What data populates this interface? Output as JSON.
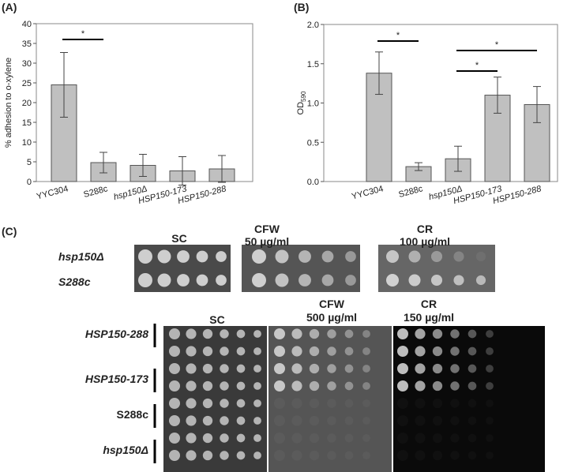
{
  "chart_data": [
    {
      "type": "bar",
      "panel_label": "(A)",
      "y_label": "% adhesion to o-xylene",
      "categories": [
        "YYC304",
        "S288c",
        "hsp150Δ",
        "HSP150-173",
        "HSP150-288"
      ],
      "values": [
        24.5,
        4.8,
        4.1,
        2.7,
        3.2
      ],
      "errors": [
        8.2,
        2.6,
        2.8,
        3.6,
        3.4
      ],
      "color": "#c0c0c0",
      "ylim": [
        0,
        40
      ],
      "yticks": [
        0,
        5,
        10,
        15,
        20,
        25,
        30,
        35,
        40
      ],
      "significance": [
        {
          "label": "*",
          "pair": [
            "YYC304",
            "S288c"
          ]
        }
      ]
    },
    {
      "type": "bar",
      "panel_label": "(B)",
      "y_label": {
        "main": "OD",
        "sub": "590"
      },
      "categories": [
        "YYC304",
        "S288c",
        "hsp150Δ",
        "HSP150-173",
        "HSP150-288"
      ],
      "values": [
        1.38,
        0.19,
        0.29,
        1.1,
        0.98
      ],
      "errors": [
        0.27,
        0.05,
        0.16,
        0.23,
        0.23
      ],
      "color": "#c0c0c0",
      "ylim": [
        0,
        2
      ],
      "yticks": [
        {
          "value": 0,
          "label": "0.0"
        },
        {
          "value": 0.5,
          "label": "0.5"
        },
        {
          "value": 1,
          "label": "1.0"
        },
        {
          "value": 1.5,
          "label": "1.5"
        },
        {
          "value": 2,
          "label": "2.0"
        }
      ],
      "significance": [
        {
          "label": "*",
          "pair": [
            "YYC304",
            "S288c"
          ]
        },
        {
          "label": "*",
          "pair": [
            "hsp150Δ",
            "HSP150-173"
          ]
        },
        {
          "label": "*",
          "pair": [
            "hsp150Δ",
            "HSP150-288"
          ]
        }
      ]
    }
  ],
  "panel_c": {
    "label": "(C)",
    "top": {
      "headers": [
        [
          "SC"
        ],
        [
          "CFW",
          "50 µg/ml"
        ],
        [
          "CR",
          "100 µg/ml"
        ]
      ],
      "rows": [
        "hsp150Δ",
        "S288c"
      ]
    },
    "bottom": {
      "headers": [
        [
          "SC"
        ],
        [
          "CFW",
          "500 µg/ml"
        ],
        [
          "CR",
          "150 µg/ml"
        ]
      ],
      "rows": [
        "HSP150-288",
        "HSP150-173",
        "S288c",
        "hsp150Δ"
      ]
    }
  }
}
